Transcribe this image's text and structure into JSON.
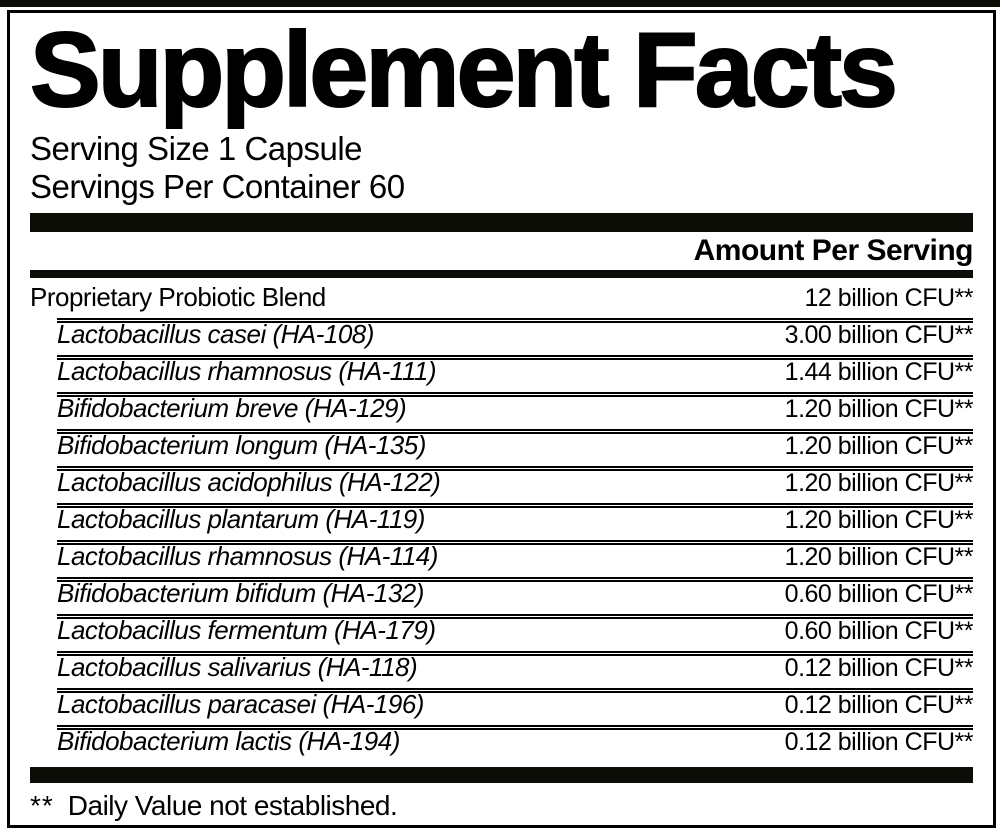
{
  "label": {
    "title": "Supplement Facts",
    "serving_size": "Serving Size 1 Capsule",
    "servings_per_container": "Servings Per Container 60",
    "amount_header": "Amount Per Serving",
    "footnote_marker": "**",
    "footnote_text": "Daily Value not established.",
    "colors": {
      "ink": "#000000",
      "paper": "#ffffff"
    }
  },
  "rows": [
    {
      "name": "Proprietary Probiotic Blend",
      "amount": "12 billion CFU**",
      "indent": false,
      "italic": false
    },
    {
      "name": "Lactobacillus casei (HA-108)",
      "amount": "3.00 billion CFU**",
      "indent": true,
      "italic": true
    },
    {
      "name": "Lactobacillus rhamnosus (HA-111)",
      "amount": "1.44 billion CFU**",
      "indent": true,
      "italic": true
    },
    {
      "name": "Bifidobacterium breve (HA-129)",
      "amount": "1.20 billion CFU**",
      "indent": true,
      "italic": true
    },
    {
      "name": "Bifidobacterium longum (HA-135)",
      "amount": "1.20 billion CFU**",
      "indent": true,
      "italic": true
    },
    {
      "name": "Lactobacillus acidophilus (HA-122)",
      "amount": "1.20 billion CFU**",
      "indent": true,
      "italic": true
    },
    {
      "name": "Lactobacillus plantarum (HA-119)",
      "amount": "1.20 billion CFU**",
      "indent": true,
      "italic": true
    },
    {
      "name": "Lactobacillus rhamnosus (HA-114)",
      "amount": "1.20 billion CFU**",
      "indent": true,
      "italic": true
    },
    {
      "name": "Bifidobacterium bifidum (HA-132)",
      "amount": "0.60 billion CFU**",
      "indent": true,
      "italic": true
    },
    {
      "name": "Lactobacillus fermentum (HA-179)",
      "amount": "0.60 billion CFU**",
      "indent": true,
      "italic": true
    },
    {
      "name": "Lactobacillus salivarius (HA-118)",
      "amount": "0.12 billion CFU**",
      "indent": true,
      "italic": true
    },
    {
      "name": "Lactobacillus paracasei (HA-196)",
      "amount": "0.12 billion CFU**",
      "indent": true,
      "italic": true
    },
    {
      "name": "Bifidobacterium lactis (HA-194)",
      "amount": "0.12 billion CFU**",
      "indent": true,
      "italic": true
    }
  ]
}
